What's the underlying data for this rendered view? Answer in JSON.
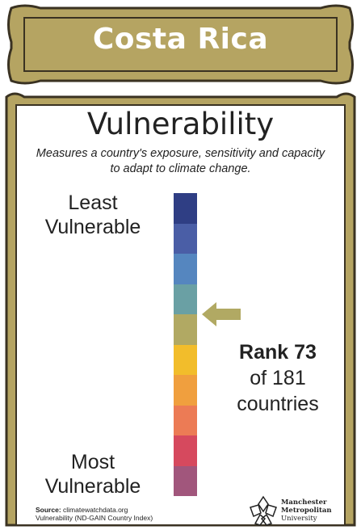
{
  "banner": {
    "title": "Costa Rica"
  },
  "card": {
    "title": "Vulnerability",
    "description": "Measures a country's exposure, sensitivity and capacity to adapt to climate change.",
    "least_label": "Least Vulnerable",
    "most_label": "Most Vulnerable"
  },
  "scale": {
    "colors": [
      "#2f3e84",
      "#4a5ea6",
      "#5586bf",
      "#6aa0a4",
      "#b1a963",
      "#f2bd2b",
      "#f09f3e",
      "#ec7b55",
      "#d6495e",
      "#a1567c"
    ],
    "highlighted_index": 4
  },
  "rank": {
    "rank_line": "Rank 73",
    "of_line": "of 181",
    "countries_line": "countries"
  },
  "source": {
    "label": "Source:",
    "site": "climatewatchdata.org",
    "index": "Vulnerability (ND-GAIN Country Index)"
  },
  "university": {
    "line1": "Manchester",
    "line2": "Metropolitan",
    "line3": "University"
  },
  "colors": {
    "frame": "#b5a462",
    "frame_dark": "#3a3222"
  }
}
